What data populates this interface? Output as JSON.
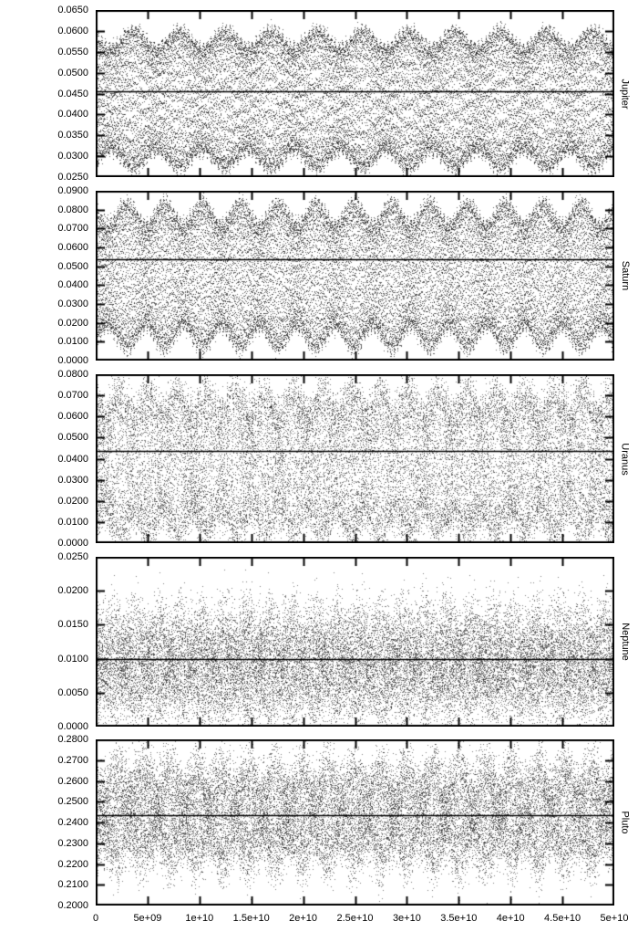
{
  "figure": {
    "background": "#ffffff",
    "foreground": "#000000",
    "dot_color_striped": "rgba(0,0,0,0.60)",
    "dot_color_speckle": "rgba(0,0,0,0.50)"
  },
  "x_axis": {
    "min": 0,
    "max": 50000000000,
    "tick_labels": [
      "0",
      "5e+09",
      "1e+10",
      "1.5e+10",
      "2e+10",
      "2.5e+10",
      "3e+10",
      "3.5e+10",
      "4e+10",
      "4.5e+10",
      "5e+10"
    ],
    "tick_values": [
      0,
      5000000000,
      10000000000,
      15000000000,
      20000000000,
      25000000000,
      30000000000,
      35000000000,
      40000000000,
      45000000000,
      50000000000
    ],
    "label": ""
  },
  "chart_data": [
    {
      "type": "scatter",
      "panel_label": "Jupiter",
      "ylim": [
        0.025,
        0.065
      ],
      "ytick_step": 0.005,
      "ytick_labels": [
        "0.0250",
        "0.0300",
        "0.0350",
        "0.0400",
        "0.0450",
        "0.0500",
        "0.0550",
        "0.0600",
        "0.0650"
      ],
      "mean_line": 0.0455,
      "scatter_model": {
        "mode": "striped",
        "seed": 11,
        "center": 0.0436,
        "amp": 0.0145,
        "amp_mod": 0.0022,
        "amp_mod_cycles": 11.3,
        "amp_mod2": 0.001,
        "amp_mod2_cycles": 137.7,
        "carrier_cycles": 1237.3,
        "noise": 0.0006,
        "n_points": 26000
      }
    },
    {
      "type": "scatter",
      "panel_label": "Saturn",
      "ylim": [
        0.0,
        0.09
      ],
      "ytick_step": 0.01,
      "ytick_labels": [
        "0.0000",
        "0.0100",
        "0.0200",
        "0.0300",
        "0.0400",
        "0.0500",
        "0.0600",
        "0.0700",
        "0.0800",
        "0.0900"
      ],
      "mean_line": 0.0535,
      "scatter_model": {
        "mode": "striped",
        "seed": 22,
        "center": 0.045,
        "amp": 0.033,
        "amp_mod": 0.006,
        "amp_mod_cycles": 13.7,
        "amp_mod2": 0.0025,
        "amp_mod2_cycles": 157.3,
        "carrier_cycles": 1411.7,
        "noise": 0.0015,
        "n_points": 26000
      }
    },
    {
      "type": "scatter",
      "panel_label": "Uranus",
      "ylim": [
        0.0,
        0.08
      ],
      "ytick_step": 0.01,
      "ytick_labels": [
        "0.0000",
        "0.0100",
        "0.0200",
        "0.0300",
        "0.0400",
        "0.0500",
        "0.0600",
        "0.0700",
        "0.0800"
      ],
      "mean_line": 0.0435,
      "scatter_model": {
        "mode": "speckle",
        "seed": 33,
        "center": 0.038,
        "amp": 0.03,
        "amp_mod": 0.006,
        "amp_mod_cycles": 17.9,
        "amp_mod2": 0.004,
        "amp_mod2_cycles": 211.1,
        "carrier_cycles": 1523.9,
        "noise": 0.004,
        "n_points": 26000
      }
    },
    {
      "type": "scatter",
      "panel_label": "Neptune",
      "ylim": [
        0.0,
        0.025
      ],
      "ytick_step": 0.005,
      "ytick_labels": [
        "0.0000",
        "0.0050",
        "0.0100",
        "0.0150",
        "0.0200",
        "0.0250"
      ],
      "mean_line": 0.01,
      "scatter_model": {
        "mode": "speckle",
        "seed": 44,
        "center": 0.0092,
        "amp": 0.0048,
        "amp_mod": 0.0016,
        "amp_mod_cycles": 23.3,
        "amp_mod2": 0.0008,
        "amp_mod2_cycles": 181.7,
        "carrier_cycles": 1693.1,
        "noise": 0.0028,
        "n_points": 26000
      }
    },
    {
      "type": "scatter",
      "panel_label": "Pluto",
      "ylim": [
        0.2,
        0.28
      ],
      "ytick_step": 0.01,
      "ytick_labels": [
        "0.2000",
        "0.2100",
        "0.2200",
        "0.2300",
        "0.2400",
        "0.2500",
        "0.2600",
        "0.2700",
        "0.2800"
      ],
      "mean_line": 0.2435,
      "scatter_model": {
        "mode": "speckle",
        "seed": 55,
        "center": 0.244,
        "amp": 0.018,
        "amp_mod": 0.006,
        "amp_mod_cycles": 19.7,
        "amp_mod2": 0.002,
        "amp_mod2_cycles": 149.3,
        "carrier_cycles": 1787.5,
        "noise": 0.007,
        "n_points": 26000
      }
    }
  ]
}
